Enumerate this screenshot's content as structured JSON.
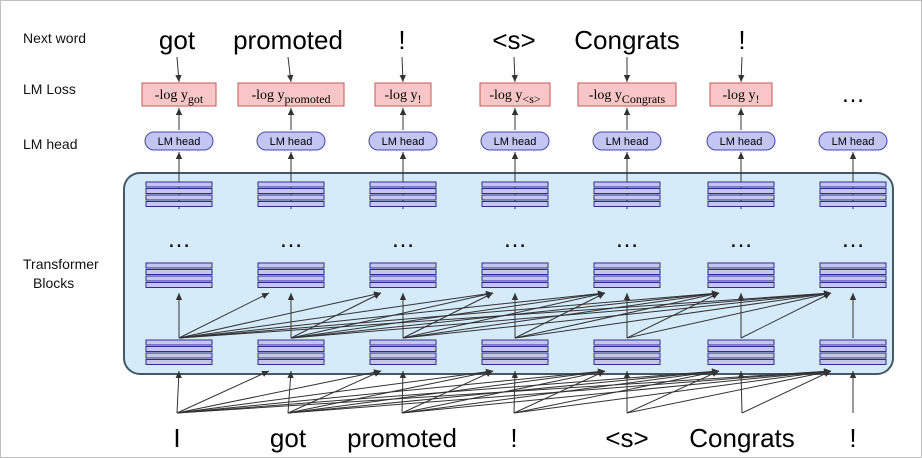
{
  "row_labels": {
    "next_word": "Next word",
    "lm_loss": "LM Loss",
    "lm_head": "LM head",
    "transformer_line1": "Transformer",
    "transformer_line2": "Blocks"
  },
  "next_words": [
    "got",
    "promoted",
    "!",
    "<s>",
    "Congrats",
    "!"
  ],
  "loss_prefix": "-log y",
  "loss_subscripts": [
    "got",
    "promoted",
    "!",
    "<s>",
    "Congrats",
    "!"
  ],
  "loss_trailing": "…",
  "head_label": "LM head",
  "layer_ellipsis": "…",
  "input_words": [
    "I",
    "got",
    "promoted",
    "!",
    "<s>",
    "Congrats",
    "!"
  ],
  "colors": {
    "loss_box": "#f8c6c6",
    "loss_border": "#c45a5a",
    "head_box": "#c3c5f4",
    "head_border": "#4848a8",
    "block_region": "#d6ebfa",
    "block_border": "#45586a",
    "stack_fill": "#c5c5f0",
    "stack_border": "#2e2e8c",
    "arrow": "#333333"
  }
}
